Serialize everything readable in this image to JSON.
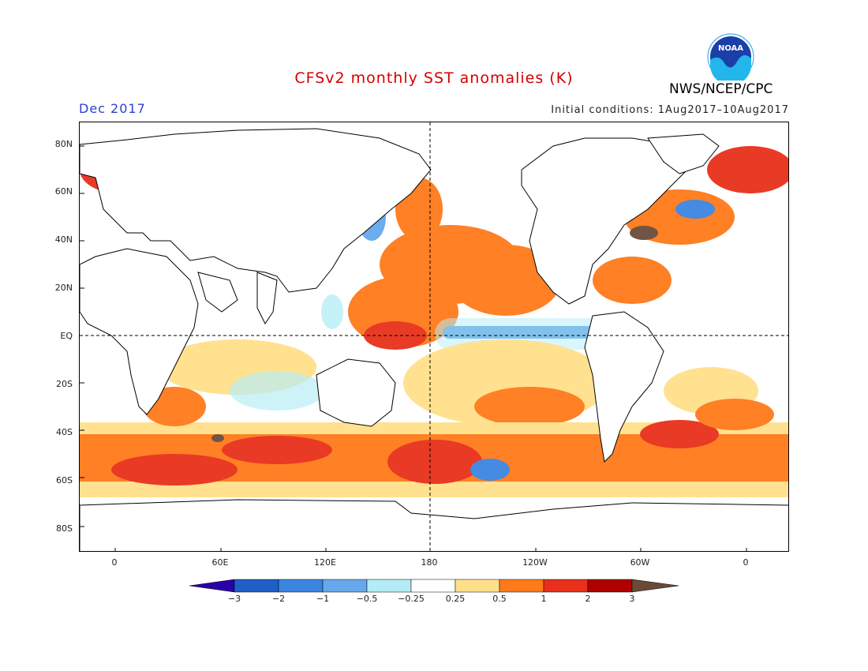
{
  "header": {
    "title": "CFSv2 monthly SST anomalies (K)",
    "period": "Dec 2017",
    "initial_conditions": "Initial conditions: 1Aug2017–10Aug2017",
    "agency": "NWS/NCEP/CPC",
    "logo_text": "NOAA"
  },
  "map": {
    "projection": "cylindrical",
    "lon_labels": [
      "0",
      "60E",
      "120E",
      "180",
      "120W",
      "60W",
      "0"
    ],
    "lat_labels": [
      "80N",
      "60N",
      "40N",
      "20N",
      "EQ",
      "20S",
      "40S",
      "60S",
      "80S"
    ],
    "reference_lines": [
      "EQ",
      "180"
    ]
  },
  "colorbar": {
    "labels": [
      "−3",
      "−2",
      "−1",
      "−0.5",
      "−0.25",
      "0.25",
      "0.5",
      "1",
      "2",
      "3"
    ],
    "colors": [
      "#2a00a8",
      "#1f5fc8",
      "#3a85e0",
      "#66a8ec",
      "#b3ecf5",
      "#ffffff",
      "#ffe08a",
      "#ff7a1a",
      "#e8301a",
      "#b00000",
      "#6b4a3a"
    ],
    "units": "K"
  }
}
